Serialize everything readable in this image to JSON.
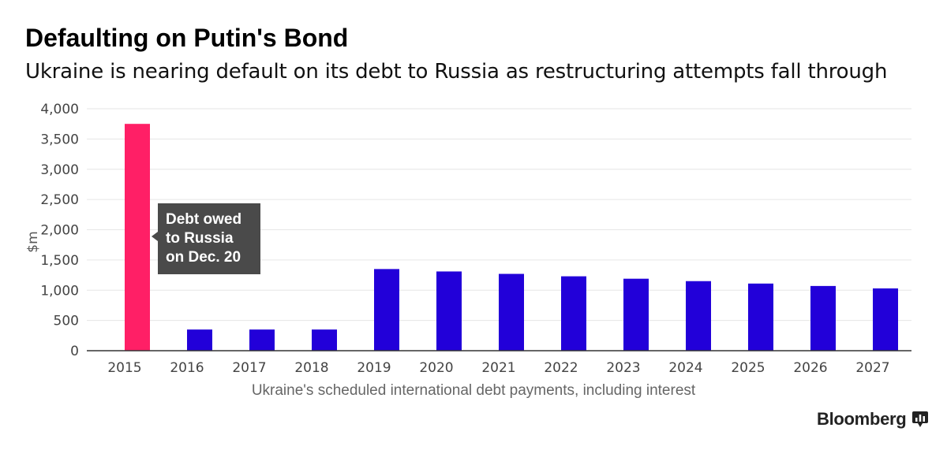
{
  "header": {
    "title": "Defaulting on Putin's Bond",
    "subtitle": "Ukraine is nearing default on its debt to Russia as restructuring attempts fall through"
  },
  "chart_data": {
    "type": "bar",
    "categories": [
      "2015",
      "2016",
      "2017",
      "2018",
      "2019",
      "2020",
      "2021",
      "2022",
      "2023",
      "2024",
      "2025",
      "2026",
      "2027"
    ],
    "series": [
      {
        "values": [
          3750,
          350,
          350,
          350,
          1350,
          1310,
          1270,
          1230,
          1190,
          1150,
          1110,
          1070,
          1030
        ]
      }
    ],
    "highlight_index": 0,
    "colors": {
      "highlight": "#ff1f66",
      "default": "#2200d9",
      "grid": "#e6e6e6",
      "axis": "#333333"
    },
    "ylim": [
      0,
      4000
    ],
    "yticks": [
      0,
      500,
      1000,
      1500,
      2000,
      2500,
      3000,
      3500,
      4000
    ],
    "ytick_labels": [
      "0",
      "500",
      "1,000",
      "1,500",
      "2,000",
      "2,500",
      "3,000",
      "3,500",
      "4,000"
    ],
    "ylabel": "$m",
    "xlabel": "Ukraine's scheduled international debt payments, including interest",
    "annotation": {
      "lines": [
        "Debt owed",
        "to Russia",
        "on Dec. 20"
      ],
      "target_category": "2015"
    },
    "grid": true,
    "legend": "none"
  },
  "footer": {
    "brand": "Bloomberg",
    "brand_icon": "bloomberg-chart-icon"
  }
}
